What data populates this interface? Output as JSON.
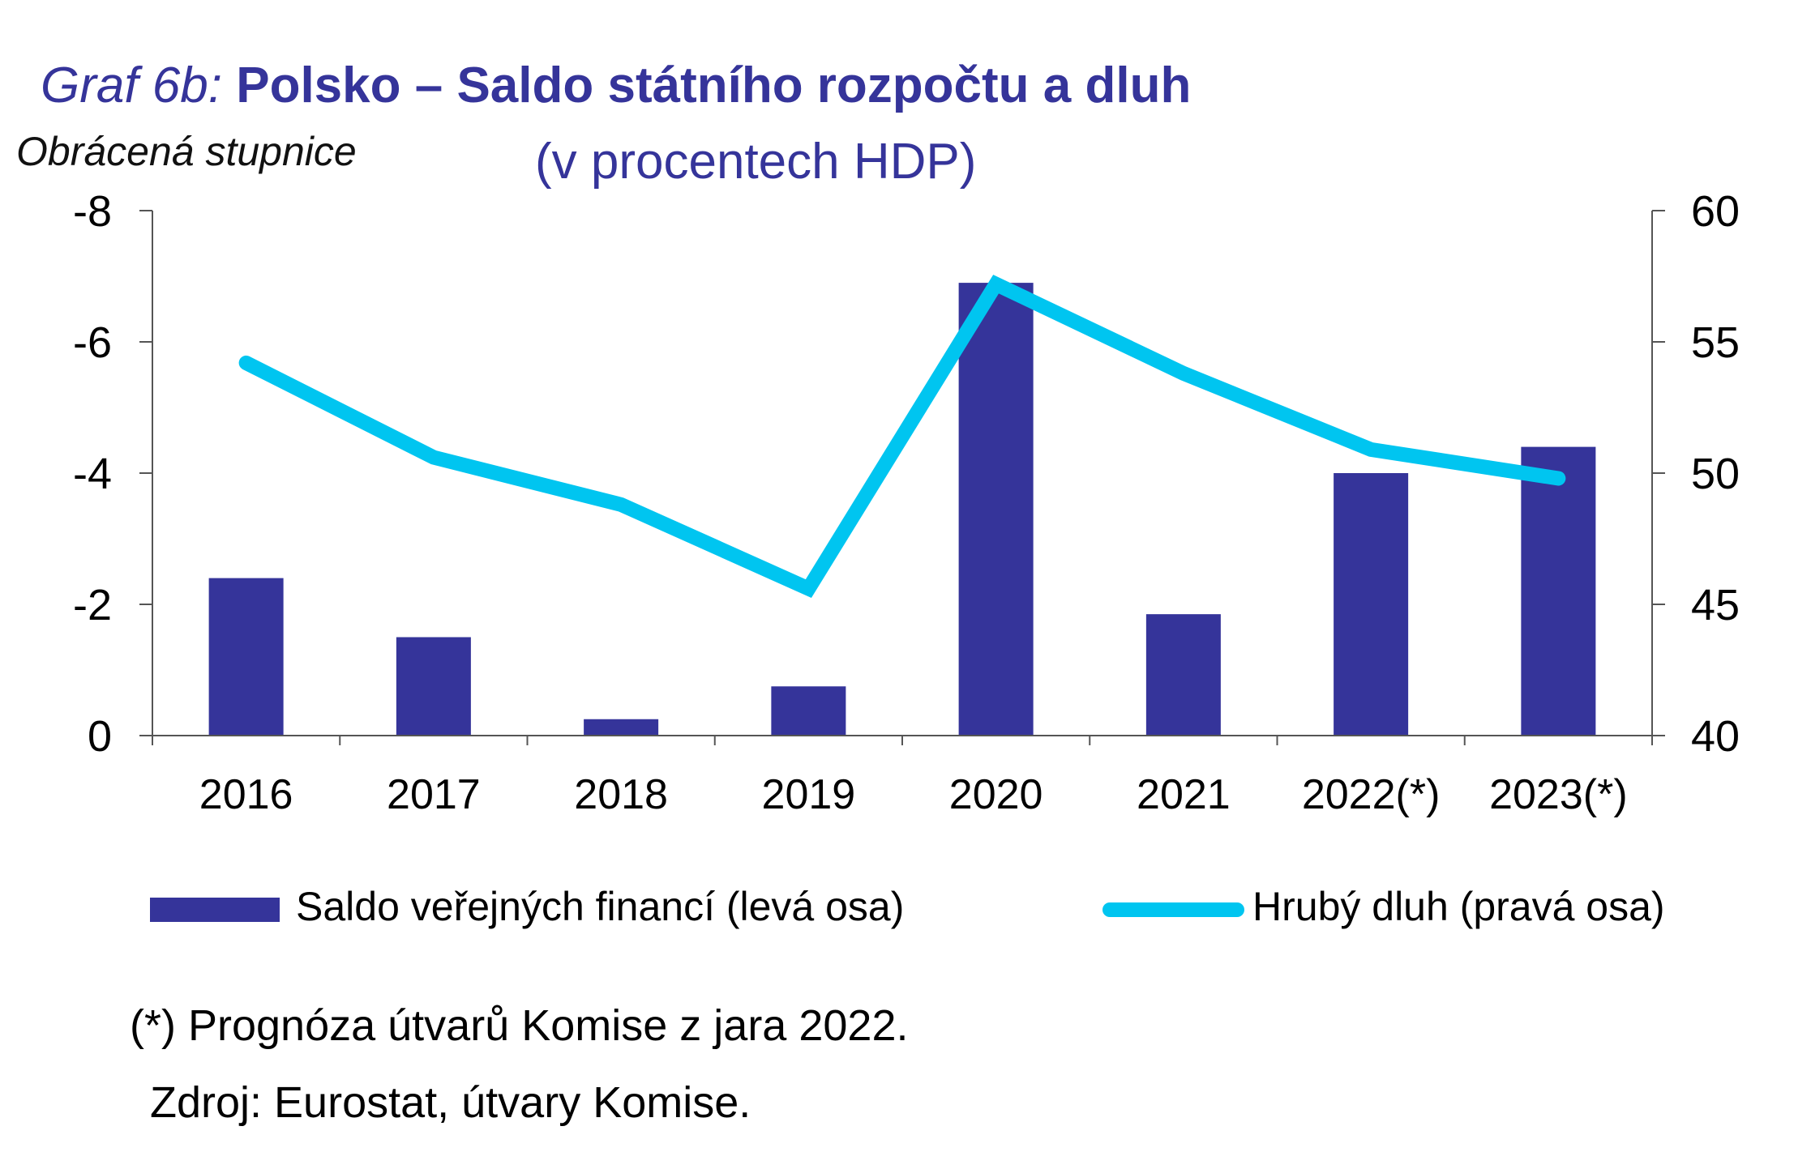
{
  "title": {
    "prefix": "Graf 6b:",
    "main": "Polsko – Saldo státního rozpočtu a dluh",
    "subtitle": "(v procentech HDP)"
  },
  "scale_note": "Obrácená stupnice",
  "chart_data": {
    "type": "bar+line",
    "categories": [
      "2016",
      "2017",
      "2018",
      "2019",
      "2020",
      "2021",
      "2022(*)",
      "2023(*)"
    ],
    "series": [
      {
        "name": "Saldo veřejných financí (levá osa)",
        "type": "bar",
        "axis": "left",
        "color": "#35349a",
        "values": [
          -2.4,
          -1.5,
          -0.25,
          -0.75,
          -6.9,
          -1.85,
          -4.0,
          -4.4
        ]
      },
      {
        "name": "Hrubý dluh (pravá osa)",
        "type": "line",
        "axis": "right",
        "color": "#00c5f0",
        "values": [
          54.2,
          50.6,
          48.8,
          45.6,
          57.2,
          53.8,
          50.9,
          49.8
        ]
      }
    ],
    "left_axis": {
      "min": 0,
      "max": -8,
      "ticks": [
        "-8",
        "-6",
        "-4",
        "-2",
        "0"
      ],
      "reversed": true
    },
    "right_axis": {
      "min": 40,
      "max": 60,
      "ticks": [
        "60",
        "55",
        "50",
        "45",
        "40"
      ]
    },
    "grid": false,
    "legend_position": "bottom"
  },
  "legend": {
    "bar_label": "Saldo veřejných financí (levá osa)",
    "line_label": "Hrubý dluh (pravá osa)"
  },
  "footnote": "(*) Prognóza útvarů Komise z jara 2022.",
  "source": "Zdroj: Eurostat, útvary Komise."
}
